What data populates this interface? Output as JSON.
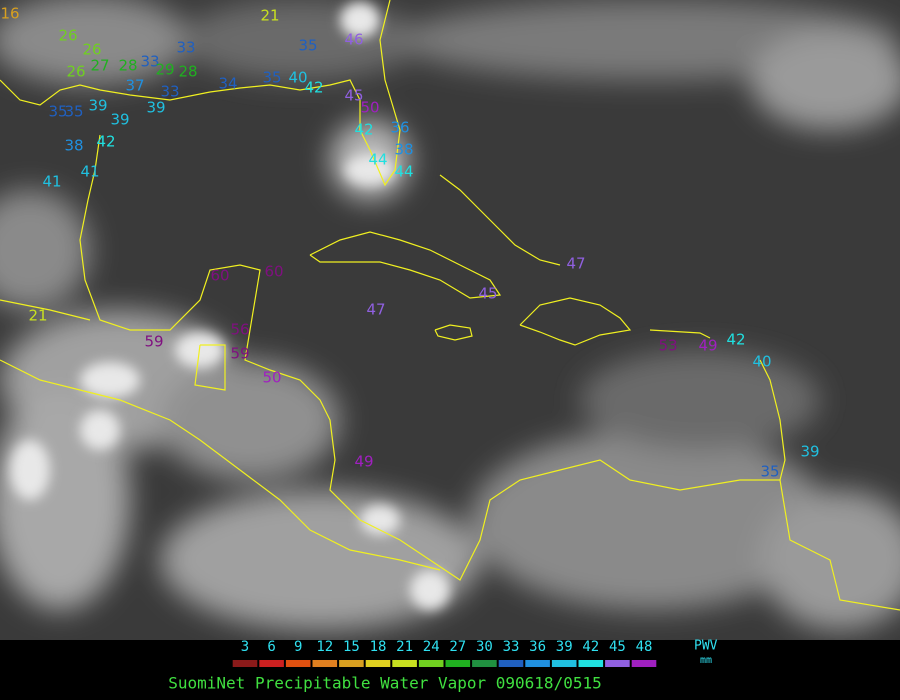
{
  "map": {
    "stations": [
      16,
      21,
      26,
      26,
      26,
      27,
      28,
      33,
      29,
      28,
      33,
      35,
      46,
      34,
      35,
      40,
      42,
      45,
      50,
      35,
      35,
      39,
      39,
      39,
      33,
      37,
      38,
      42,
      41,
      41,
      42,
      36,
      38,
      44,
      44,
      21,
      60,
      60,
      59,
      56,
      59,
      50,
      47,
      45,
      47,
      49,
      42,
      40,
      49,
      53,
      39,
      35
    ]
  },
  "legend": {
    "ticks": [
      3,
      6,
      9,
      12,
      15,
      18,
      21,
      24,
      27,
      30,
      33,
      36,
      39,
      42,
      45,
      48
    ],
    "colors": [
      "#8b1a1a",
      "#cc2020",
      "#e05010",
      "#e08020",
      "#d8a020",
      "#e0d020",
      "#c8e020",
      "#70d020",
      "#20b020",
      "#209040",
      "#2060c0",
      "#2090e0",
      "#20c0e0",
      "#20e0e0",
      "#9060e0",
      "#a020c0"
    ],
    "unit_label": "PWV",
    "unit": "mm"
  },
  "caption": "SuomiNet Precipitable Water Vapor 090618/0515"
}
